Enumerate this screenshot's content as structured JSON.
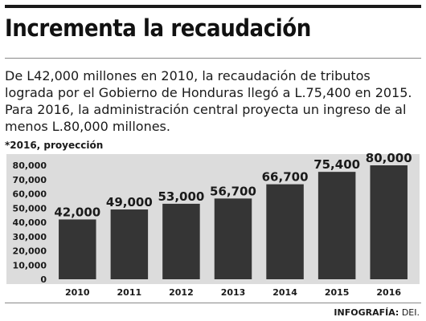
{
  "headline": "Incrementa la recaudación",
  "intro_lines": [
    "De L42,000 millones en 2010, la recaudación de tributos",
    "lograda por el Gobierno de Honduras llegó a L.75,400 en 2015.",
    "Para 2016, la administración central proyecta un ingreso de al",
    "menos L.80,000 millones."
  ],
  "footnote": "*2016, proyección",
  "credit": {
    "label": "INFOGRAFÍA:",
    "source": "DEI."
  },
  "colors": {
    "bar": "#353535",
    "panel": "#dcdcdc",
    "text": "#1a1a1a"
  },
  "chart_data": {
    "type": "bar",
    "categories": [
      "2010",
      "2011",
      "2012",
      "2013",
      "2014",
      "2015",
      "2016"
    ],
    "values": [
      42000,
      49000,
      53000,
      56700,
      66700,
      75400,
      80000
    ],
    "value_labels": [
      "42,000",
      "49,000",
      "53,000",
      "56,700",
      "66,700",
      "75,400",
      "80,000"
    ],
    "y_ticks": [
      0,
      10000,
      20000,
      30000,
      40000,
      50000,
      60000,
      70000,
      80000
    ],
    "y_tick_labels": [
      "0",
      "10,000",
      "20,000",
      "30,000",
      "40,000",
      "50,000",
      "60,000",
      "70,000",
      "80,000"
    ],
    "ylim": [
      0,
      80000
    ],
    "title": "",
    "xlabel": "",
    "ylabel": "",
    "grid": false,
    "legend": "none"
  }
}
